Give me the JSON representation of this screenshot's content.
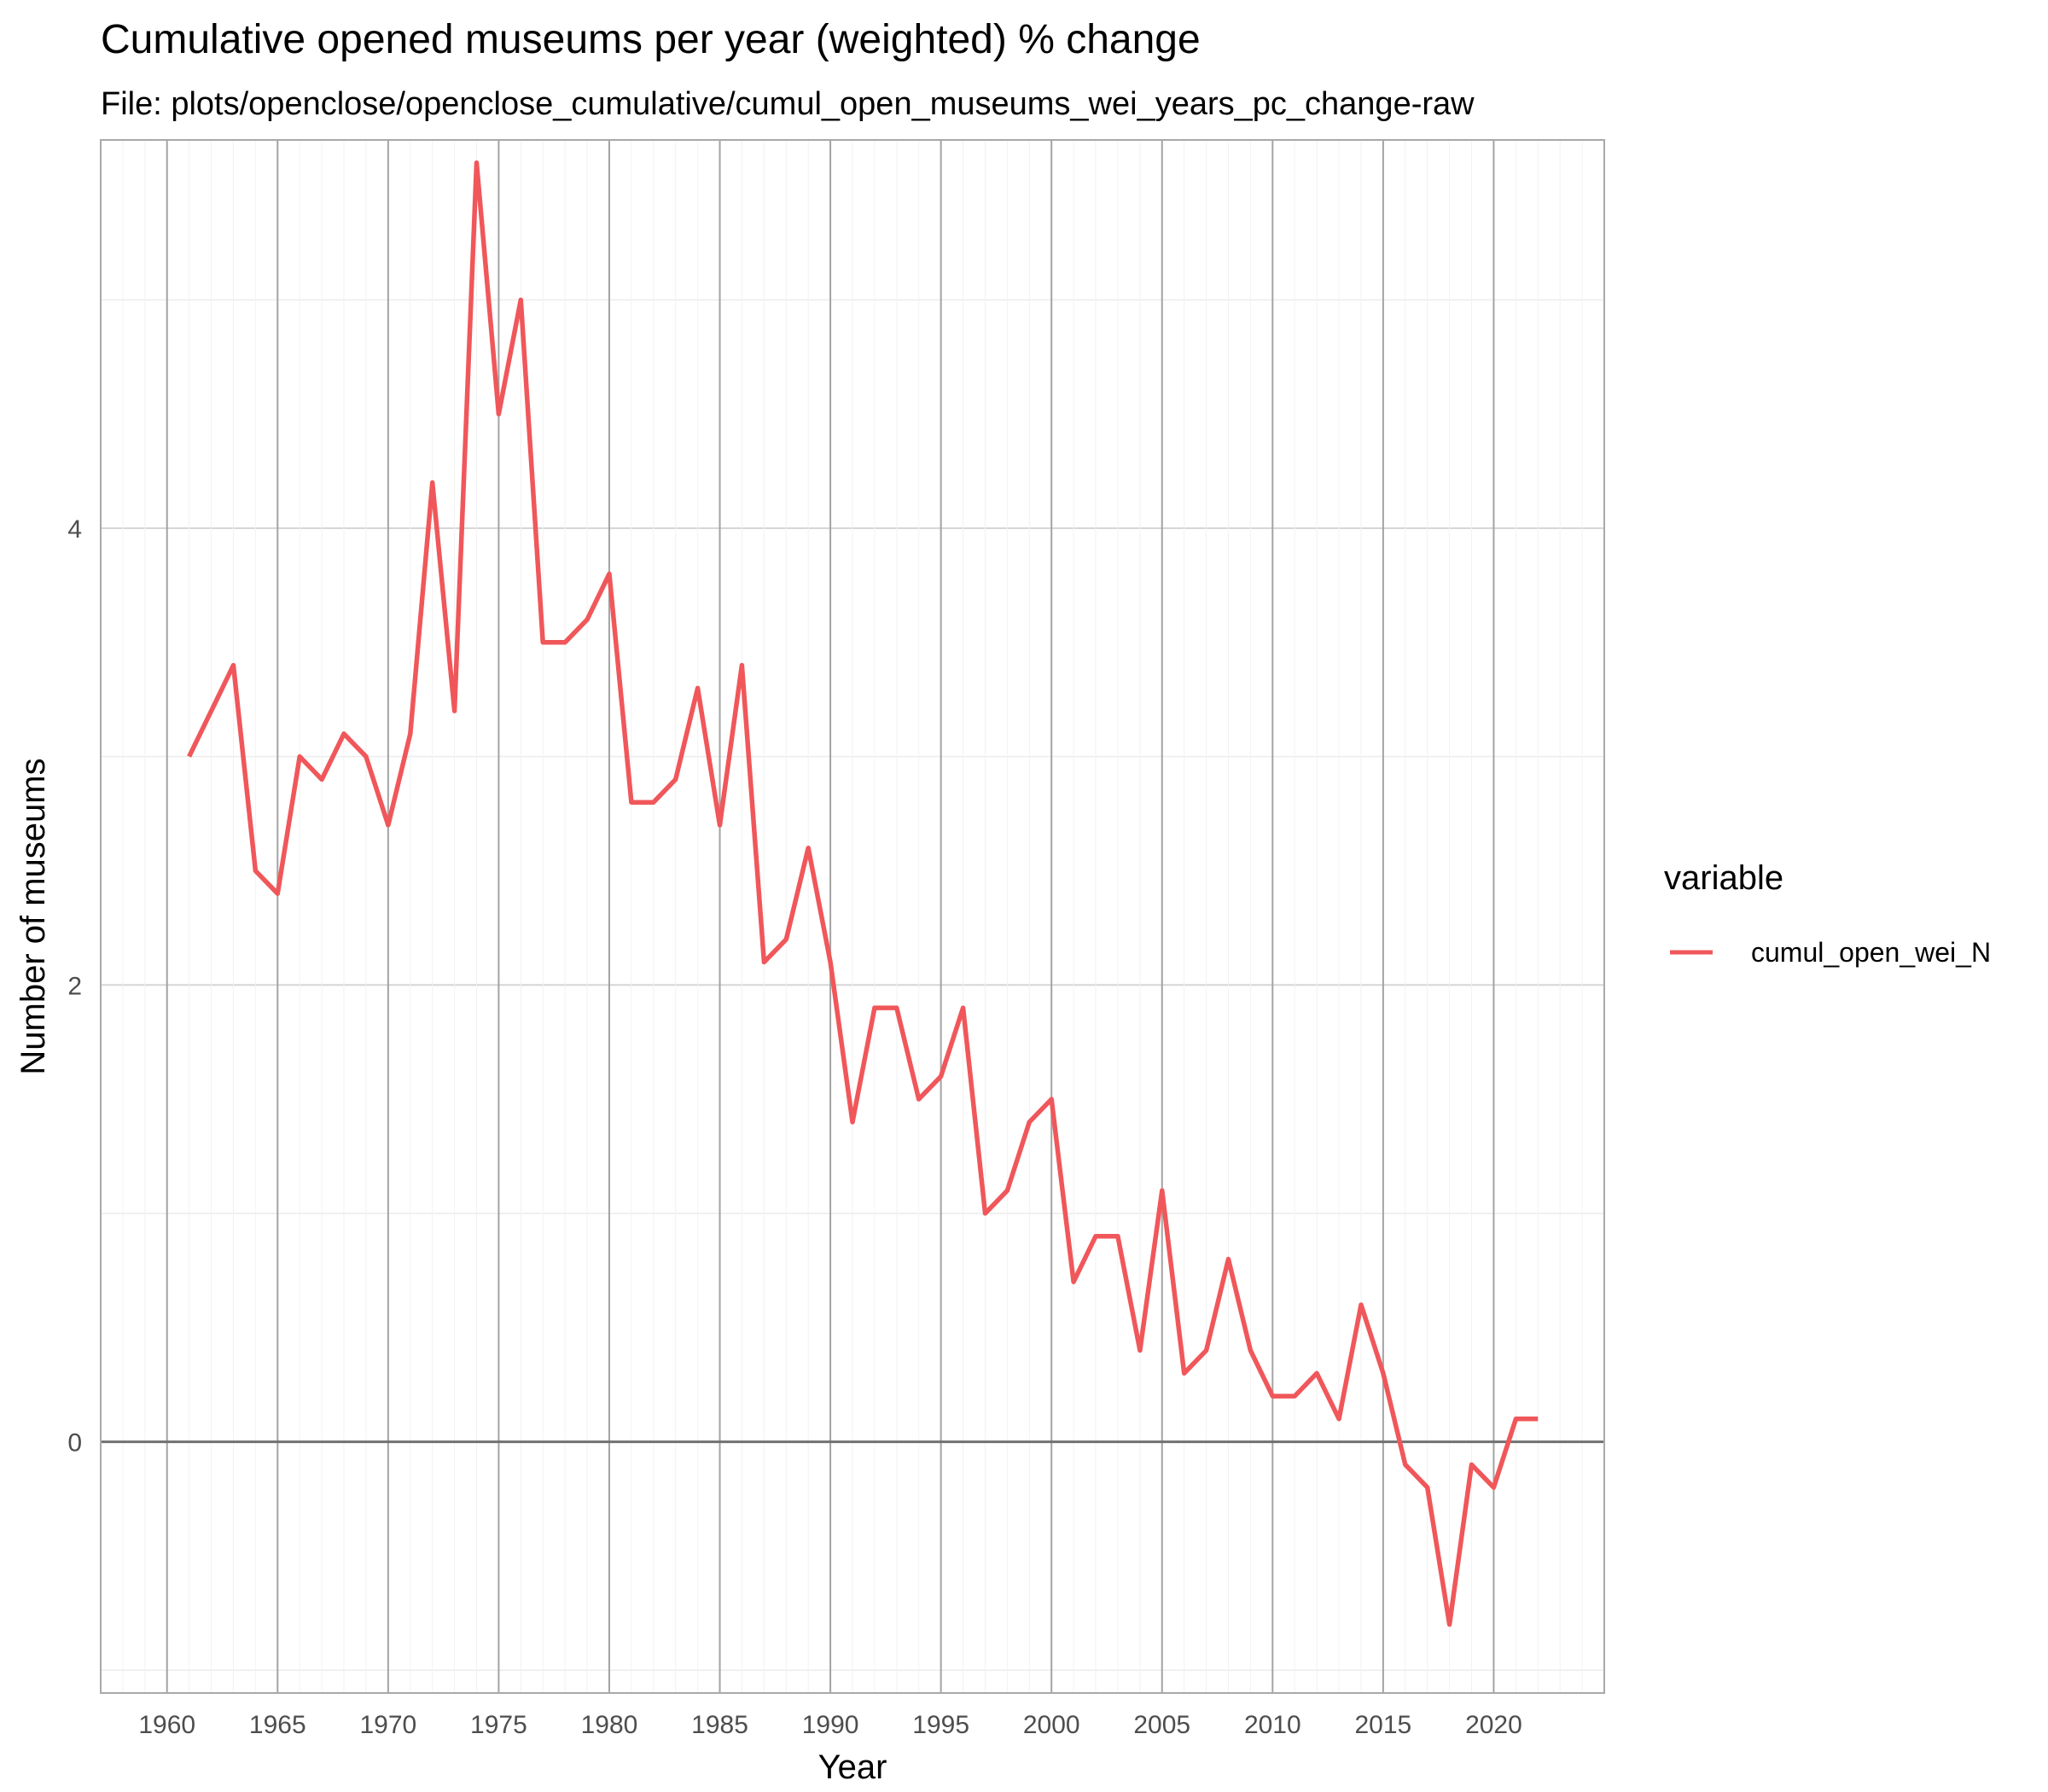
{
  "chart_data": {
    "type": "line",
    "title": "Cumulative opened museums per year (weighted) % change",
    "subtitle": "File: plots/openclose/openclose_cumulative/cumul_open_museums_wei_years_pc_change-raw",
    "xlabel": "Year",
    "ylabel": "Number of museums",
    "xlim": [
      1957,
      2025
    ],
    "ylim": [
      -1.1,
      5.7
    ],
    "x_ticks": [
      1960,
      1965,
      1970,
      1975,
      1980,
      1985,
      1990,
      1995,
      2000,
      2005,
      2010,
      2015,
      2020
    ],
    "x_tick_labels": [
      "1960",
      "1965",
      "1970",
      "1975",
      "1980",
      "1985",
      "1990",
      "1995",
      "2000",
      "2005",
      "2010",
      "2015",
      "2020"
    ],
    "y_ticks": [
      0,
      2,
      4
    ],
    "y_tick_labels": [
      "0",
      "2",
      "4"
    ],
    "y_minor_gridlines": [
      -1,
      1,
      3,
      5
    ],
    "x_gridlines": "every year",
    "reference_line_y": 0,
    "grid": true,
    "legend": {
      "title": "variable",
      "position": "right"
    },
    "series": [
      {
        "name": "cumul_open_wei_N",
        "color": "#f0575a",
        "x": [
          1961,
          1962,
          1963,
          1964,
          1965,
          1966,
          1967,
          1968,
          1969,
          1970,
          1971,
          1972,
          1973,
          1974,
          1975,
          1976,
          1977,
          1978,
          1979,
          1980,
          1981,
          1982,
          1983,
          1984,
          1985,
          1986,
          1987,
          1988,
          1989,
          1990,
          1991,
          1992,
          1993,
          1994,
          1995,
          1996,
          1997,
          1998,
          1999,
          2000,
          2001,
          2002,
          2003,
          2004,
          2005,
          2006,
          2007,
          2008,
          2009,
          2010,
          2011,
          2012,
          2013,
          2014,
          2015,
          2016,
          2017,
          2018,
          2019,
          2020,
          2021,
          2022
        ],
        "values": [
          3.0,
          3.2,
          3.4,
          2.5,
          2.4,
          3.0,
          2.9,
          3.1,
          3.0,
          2.7,
          3.1,
          4.2,
          3.2,
          5.6,
          4.5,
          5.0,
          3.5,
          3.5,
          3.6,
          3.8,
          2.8,
          2.8,
          2.9,
          3.3,
          2.7,
          3.4,
          2.1,
          2.2,
          2.6,
          2.1,
          1.4,
          1.9,
          1.9,
          1.5,
          1.6,
          1.9,
          1.0,
          1.1,
          1.4,
          1.5,
          0.7,
          0.9,
          0.9,
          0.4,
          1.1,
          0.3,
          0.4,
          0.8,
          0.4,
          0.2,
          0.2,
          0.3,
          0.1,
          0.6,
          0.3,
          -0.1,
          -0.2,
          -0.8,
          -0.1,
          -0.2,
          0.1,
          0.1
        ]
      }
    ]
  }
}
